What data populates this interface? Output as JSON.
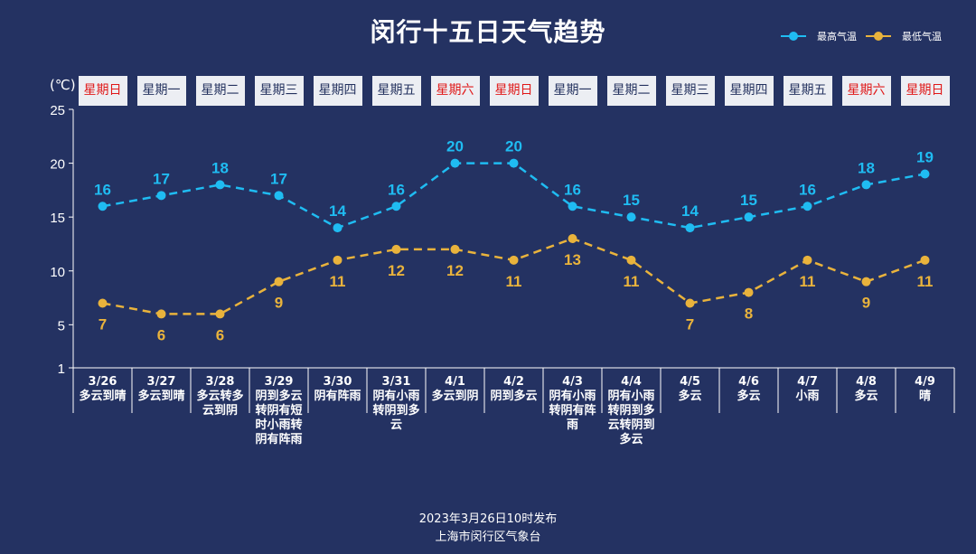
{
  "title": "闵行十五日天气趋势",
  "unit": "(℃)",
  "colors": {
    "high": "#1fbcf2",
    "low": "#e9b33c",
    "weekend": "#e01818",
    "weekday": "#24325f"
  },
  "chart_data": {
    "type": "line",
    "title": "闵行十五日天气趋势",
    "ylabel": "(℃)",
    "ylim": [
      1,
      25
    ],
    "yticks": [
      1,
      5,
      10,
      15,
      20,
      25
    ],
    "legend": "top-right",
    "grid": false,
    "categories": [
      "3/26",
      "3/27",
      "3/28",
      "3/29",
      "3/30",
      "3/31",
      "4/1",
      "4/2",
      "4/3",
      "4/4",
      "4/5",
      "4/6",
      "4/7",
      "4/8",
      "4/9"
    ],
    "weekdays": [
      "星期日",
      "星期一",
      "星期二",
      "星期三",
      "星期四",
      "星期五",
      "星期六",
      "星期日",
      "星期一",
      "星期二",
      "星期三",
      "星期四",
      "星期五",
      "星期六",
      "星期日"
    ],
    "weekend": [
      true,
      false,
      false,
      false,
      false,
      false,
      true,
      true,
      false,
      false,
      false,
      false,
      false,
      true,
      true
    ],
    "weather": [
      "多云到晴",
      "多云到晴",
      "多云转多云到阴",
      "阴到多云转阴有短时小雨转阴有阵雨",
      "阴有阵雨",
      "阴有小雨转阴到多云",
      "多云到阴",
      "阴到多云",
      "阴有小雨转阴有阵雨",
      "阴有小雨转阴到多云转阴到多云",
      "多云",
      "多云",
      "小雨",
      "多云",
      "晴"
    ],
    "series": [
      {
        "name": "最高气温",
        "values": [
          16,
          17,
          18,
          17,
          14,
          16,
          20,
          20,
          16,
          15,
          14,
          15,
          16,
          18,
          19
        ]
      },
      {
        "name": "最低气温",
        "values": [
          7,
          6,
          6,
          9,
          11,
          12,
          12,
          11,
          13,
          11,
          7,
          8,
          11,
          9,
          11
        ]
      }
    ]
  },
  "footer": {
    "line1": "2023年3月26日10时发布",
    "line2": "上海市闵行区气象台"
  }
}
